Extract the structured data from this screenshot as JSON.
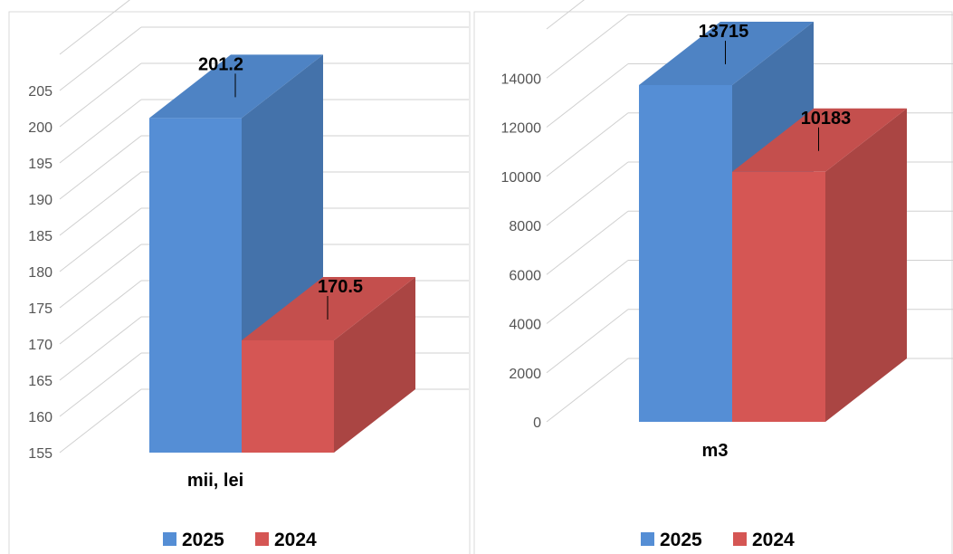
{
  "chart_data": [
    {
      "type": "bar",
      "categories": [
        "mii, lei"
      ],
      "series": [
        {
          "name": "2025",
          "values": [
            201.2
          ]
        },
        {
          "name": "2024",
          "values": [
            170.5
          ]
        }
      ],
      "data_labels": [
        "201.2",
        "170.5"
      ],
      "ylim": [
        155,
        210
      ],
      "yticks": [
        155,
        160,
        165,
        170,
        175,
        180,
        185,
        190,
        195,
        200,
        205
      ],
      "grid": true,
      "legend": "bottom",
      "colors": [
        "#558ed5",
        "#d55654"
      ]
    },
    {
      "type": "bar",
      "categories": [
        "m3"
      ],
      "series": [
        {
          "name": "2025",
          "values": [
            13715
          ]
        },
        {
          "name": "2024",
          "values": [
            10183
          ]
        }
      ],
      "data_labels": [
        "13715",
        "10183"
      ],
      "ylim": [
        0,
        16000
      ],
      "yticks": [
        0,
        2000,
        4000,
        6000,
        8000,
        10000,
        12000,
        14000
      ],
      "grid": true,
      "legend": "bottom",
      "colors": [
        "#558ed5",
        "#d55654"
      ]
    }
  ]
}
